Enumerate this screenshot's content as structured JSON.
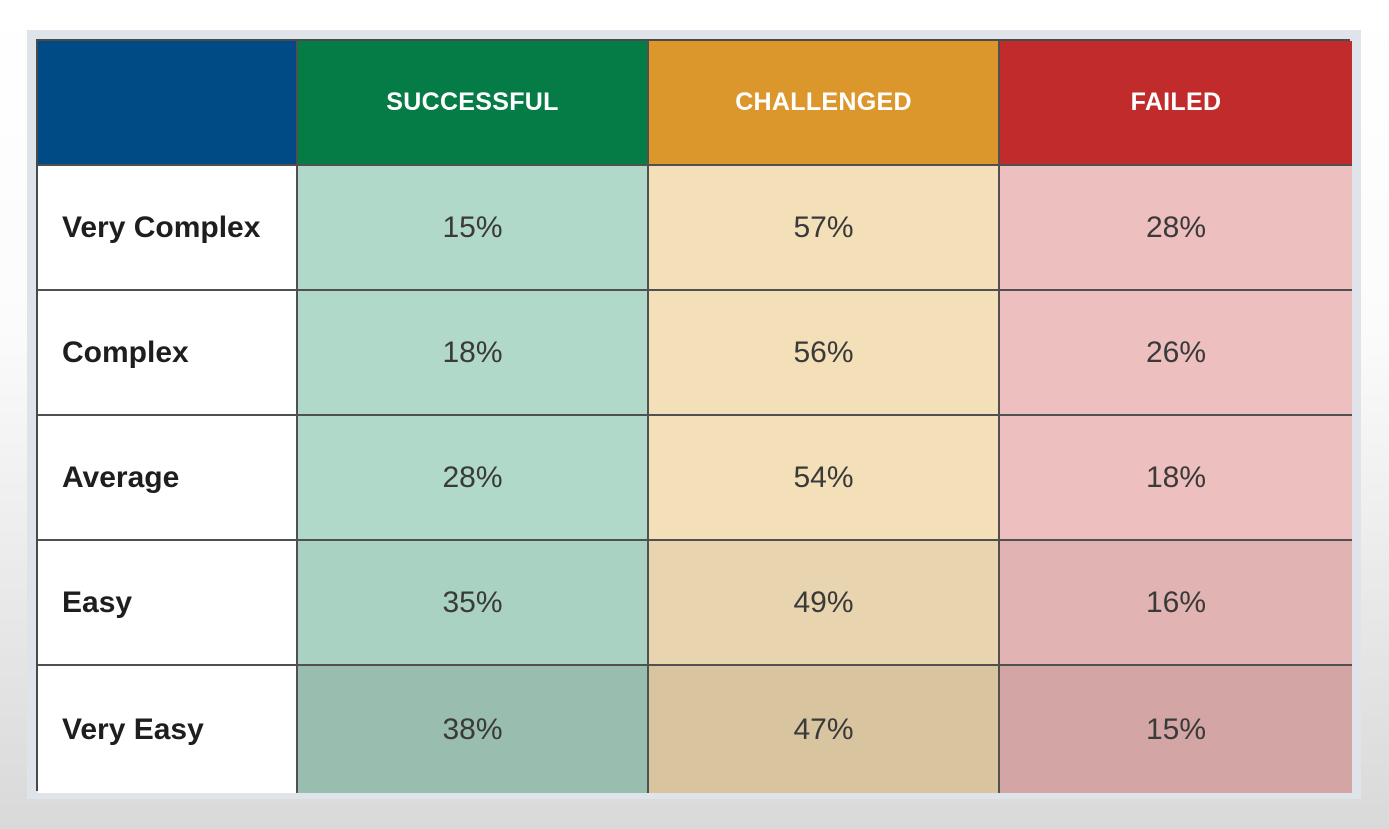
{
  "colors": {
    "corner": "#004b85",
    "successful_header": "#057b45",
    "challenged_header": "#dc972c",
    "failed_header": "#c22b2b",
    "successful_cell": [
      "#b1d9ca",
      "#b1d9ca",
      "#b1d9ca",
      "#a9d2c2",
      "#99bdae"
    ],
    "challenged_cell": [
      "#f3dfb8",
      "#f3dfb8",
      "#f3dfb8",
      "#e8d4ae",
      "#d8c49f"
    ],
    "failed_cell": [
      "#eebfbf",
      "#eebfbf",
      "#eebfbf",
      "#e2b3b3",
      "#d3a5a5"
    ]
  },
  "chart_data": {
    "type": "table",
    "columns": [
      "SUCCESSFUL",
      "CHALLENGED",
      "FAILED"
    ],
    "rows": [
      "Very Complex",
      "Complex",
      "Average",
      "Easy",
      "Very Easy"
    ],
    "values": [
      [
        "15%",
        "57%",
        "28%"
      ],
      [
        "18%",
        "56%",
        "26%"
      ],
      [
        "28%",
        "54%",
        "18%"
      ],
      [
        "35%",
        "49%",
        "16%"
      ],
      [
        "38%",
        "47%",
        "15%"
      ]
    ]
  }
}
